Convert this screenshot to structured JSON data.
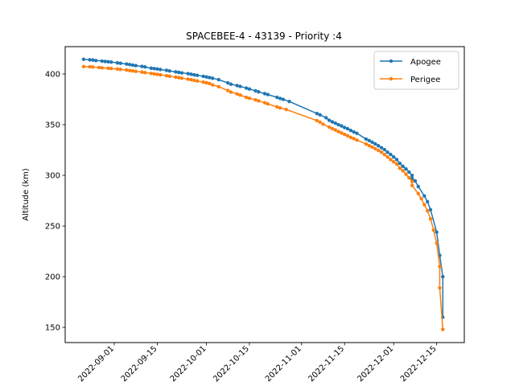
{
  "chart_data": {
    "type": "line",
    "title": "SPACEBEE-4 - 43139 - Priority :4",
    "xlabel": "",
    "ylabel": "Altitude (km)",
    "x_axis_type": "date",
    "xlim": [
      "2022-08-16",
      "2022-12-24"
    ],
    "ylim": [
      135,
      427
    ],
    "x_ticks": [
      "2022-09-01",
      "2022-09-15",
      "2022-10-01",
      "2022-10-15",
      "2022-11-01",
      "2022-11-15",
      "2022-12-01",
      "2022-12-15"
    ],
    "y_ticks": [
      150,
      200,
      250,
      300,
      350,
      400
    ],
    "grid": false,
    "legend_position": "top-right",
    "series": [
      {
        "name": "Apogee",
        "color": "#1f77b4",
        "marker": "circle",
        "points": [
          [
            "2022-08-22",
            414.5
          ],
          [
            "2022-08-24",
            414.0
          ],
          [
            "2022-08-25",
            413.8
          ],
          [
            "2022-08-26",
            413.3
          ],
          [
            "2022-08-28",
            412.8
          ],
          [
            "2022-08-29",
            412.4
          ],
          [
            "2022-08-30",
            412.1
          ],
          [
            "2022-08-31",
            411.8
          ],
          [
            "2022-09-02",
            411.0
          ],
          [
            "2022-09-03",
            410.6
          ],
          [
            "2022-09-05",
            409.8
          ],
          [
            "2022-09-06",
            409.3
          ],
          [
            "2022-09-07",
            408.8
          ],
          [
            "2022-09-08",
            408.3
          ],
          [
            "2022-09-10",
            407.5
          ],
          [
            "2022-09-11",
            407.0
          ],
          [
            "2022-09-13",
            405.7
          ],
          [
            "2022-09-14",
            405.3
          ],
          [
            "2022-09-15",
            404.9
          ],
          [
            "2022-09-16",
            404.4
          ],
          [
            "2022-09-18",
            403.6
          ],
          [
            "2022-09-19",
            403.0
          ],
          [
            "2022-09-21",
            402.1
          ],
          [
            "2022-09-22",
            401.6
          ],
          [
            "2022-09-23",
            401.1
          ],
          [
            "2022-09-25",
            400.4
          ],
          [
            "2022-09-26",
            399.8
          ],
          [
            "2022-09-27",
            399.2
          ],
          [
            "2022-09-28",
            398.7
          ],
          [
            "2022-09-30",
            397.7
          ],
          [
            "2022-10-01",
            397.1
          ],
          [
            "2022-10-02",
            396.5
          ],
          [
            "2022-10-03",
            395.8
          ],
          [
            "2022-10-05",
            394.4
          ],
          [
            "2022-10-08",
            391.2
          ],
          [
            "2022-10-09",
            389.9
          ],
          [
            "2022-10-11",
            388.6
          ],
          [
            "2022-10-12",
            387.8
          ],
          [
            "2022-10-14",
            386.1
          ],
          [
            "2022-10-15",
            385.2
          ],
          [
            "2022-10-17",
            383.4
          ],
          [
            "2022-10-18",
            382.4
          ],
          [
            "2022-10-20",
            380.6
          ],
          [
            "2022-10-21",
            379.7
          ],
          [
            "2022-10-24",
            377.0
          ],
          [
            "2022-10-25",
            375.9
          ],
          [
            "2022-10-26",
            375.0
          ],
          [
            "2022-10-28",
            372.9
          ],
          [
            "2022-11-06",
            361.0
          ],
          [
            "2022-11-07",
            359.7
          ],
          [
            "2022-11-09",
            356.8
          ],
          [
            "2022-11-10",
            354.3
          ],
          [
            "2022-11-11",
            352.8
          ],
          [
            "2022-11-12",
            351.5
          ],
          [
            "2022-11-13",
            350.0
          ],
          [
            "2022-11-14",
            348.8
          ],
          [
            "2022-11-15",
            347.2
          ],
          [
            "2022-11-16",
            346.0
          ],
          [
            "2022-11-17",
            344.3
          ],
          [
            "2022-11-18",
            342.8
          ],
          [
            "2022-11-19",
            341.5
          ],
          [
            "2022-11-22",
            335.8
          ],
          [
            "2022-11-23",
            334.3
          ],
          [
            "2022-11-24",
            332.7
          ],
          [
            "2022-11-25",
            331.0
          ],
          [
            "2022-11-26",
            329.2
          ],
          [
            "2022-11-27",
            327.3
          ],
          [
            "2022-11-28",
            325.4
          ],
          [
            "2022-11-29",
            322.8
          ],
          [
            "2022-11-30",
            320.6
          ],
          [
            "2022-12-01",
            318.1
          ],
          [
            "2022-12-02",
            315.6
          ],
          [
            "2022-12-03",
            311.8
          ],
          [
            "2022-12-04",
            308.9
          ],
          [
            "2022-12-05",
            306.3
          ],
          [
            "2022-12-06",
            303.3
          ],
          [
            "2022-12-07",
            299.9
          ],
          [
            "2022-12-07",
            297.0
          ],
          [
            "2022-12-08",
            294.5
          ],
          [
            "2022-12-09",
            289.0
          ],
          [
            "2022-12-11",
            279.7
          ],
          [
            "2022-12-12",
            274.0
          ],
          [
            "2022-12-13",
            266.1
          ],
          [
            "2022-12-15",
            244.0
          ],
          [
            "2022-12-16",
            221.0
          ],
          [
            "2022-12-17",
            200.0
          ],
          [
            "2022-12-17",
            160.0
          ]
        ]
      },
      {
        "name": "Perigee",
        "color": "#ff7f0e",
        "marker": "circle",
        "points": [
          [
            "2022-08-22",
            407.3
          ],
          [
            "2022-08-24",
            407.1
          ],
          [
            "2022-08-25",
            406.9
          ],
          [
            "2022-08-27",
            406.4
          ],
          [
            "2022-08-28",
            406.1
          ],
          [
            "2022-08-30",
            405.7
          ],
          [
            "2022-08-31",
            405.4
          ],
          [
            "2022-09-02",
            404.9
          ],
          [
            "2022-09-03",
            404.5
          ],
          [
            "2022-09-05",
            403.9
          ],
          [
            "2022-09-06",
            403.4
          ],
          [
            "2022-09-07",
            403.0
          ],
          [
            "2022-09-08",
            402.6
          ],
          [
            "2022-09-10",
            401.9
          ],
          [
            "2022-09-11",
            401.4
          ],
          [
            "2022-09-13",
            400.6
          ],
          [
            "2022-09-14",
            400.1
          ],
          [
            "2022-09-15",
            399.7
          ],
          [
            "2022-09-16",
            399.2
          ],
          [
            "2022-09-18",
            398.3
          ],
          [
            "2022-09-19",
            397.8
          ],
          [
            "2022-09-21",
            396.9
          ],
          [
            "2022-09-22",
            396.4
          ],
          [
            "2022-09-23",
            395.9
          ],
          [
            "2022-09-25",
            394.9
          ],
          [
            "2022-09-26",
            394.4
          ],
          [
            "2022-09-27",
            393.7
          ],
          [
            "2022-09-28",
            393.1
          ],
          [
            "2022-09-30",
            392.0
          ],
          [
            "2022-10-01",
            391.3
          ],
          [
            "2022-10-02",
            390.6
          ],
          [
            "2022-10-03",
            389.3
          ],
          [
            "2022-10-05",
            387.5
          ],
          [
            "2022-10-08",
            383.7
          ],
          [
            "2022-10-09",
            382.1
          ],
          [
            "2022-10-11",
            380.3
          ],
          [
            "2022-10-12",
            379.2
          ],
          [
            "2022-10-14",
            377.0
          ],
          [
            "2022-10-15",
            376.1
          ],
          [
            "2022-10-17",
            374.5
          ],
          [
            "2022-10-18",
            373.5
          ],
          [
            "2022-10-20",
            371.6
          ],
          [
            "2022-10-21",
            370.5
          ],
          [
            "2022-10-24",
            367.5
          ],
          [
            "2022-10-25",
            366.5
          ],
          [
            "2022-10-27",
            365.0
          ],
          [
            "2022-11-06",
            354.0
          ],
          [
            "2022-11-07",
            352.5
          ],
          [
            "2022-11-08",
            350.5
          ],
          [
            "2022-11-10",
            347.6
          ],
          [
            "2022-11-11",
            346.1
          ],
          [
            "2022-11-12",
            344.7
          ],
          [
            "2022-11-13",
            343.2
          ],
          [
            "2022-11-14",
            341.8
          ],
          [
            "2022-11-15",
            340.5
          ],
          [
            "2022-11-16",
            339.1
          ],
          [
            "2022-11-17",
            337.5
          ],
          [
            "2022-11-18",
            336.3
          ],
          [
            "2022-11-19",
            334.8
          ],
          [
            "2022-11-22",
            330.9
          ],
          [
            "2022-11-23",
            329.3
          ],
          [
            "2022-11-24",
            327.9
          ],
          [
            "2022-11-25",
            326.3
          ],
          [
            "2022-11-26",
            324.6
          ],
          [
            "2022-11-27",
            322.9
          ],
          [
            "2022-11-28",
            320.5
          ],
          [
            "2022-11-29",
            318.1
          ],
          [
            "2022-11-30",
            315.6
          ],
          [
            "2022-12-01",
            313.4
          ],
          [
            "2022-12-02",
            311.2
          ],
          [
            "2022-12-03",
            307.0
          ],
          [
            "2022-12-04",
            304.5
          ],
          [
            "2022-12-05",
            301.2
          ],
          [
            "2022-12-06",
            297.6
          ],
          [
            "2022-12-07",
            294.0
          ],
          [
            "2022-12-07",
            290.0
          ],
          [
            "2022-12-09",
            282.0
          ],
          [
            "2022-12-10",
            277.0
          ],
          [
            "2022-12-11",
            271.0
          ],
          [
            "2022-12-12",
            265.0
          ],
          [
            "2022-12-13",
            257.0
          ],
          [
            "2022-12-14",
            246.0
          ],
          [
            "2022-12-15",
            233.0
          ],
          [
            "2022-12-16",
            210.0
          ],
          [
            "2022-12-16",
            189.0
          ],
          [
            "2022-12-17",
            148.0
          ]
        ]
      }
    ]
  }
}
